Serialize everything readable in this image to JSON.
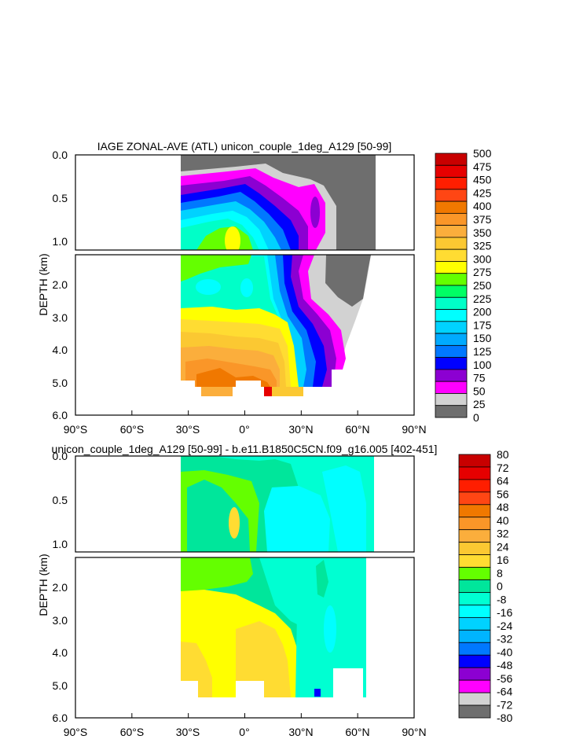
{
  "chart_data": [
    {
      "type": "heatmap",
      "title": "IAGE ZONAL-AVE (ATL) unicon_couple_1deg_A129 [50-99]",
      "ylabel": "DEPTH (km)",
      "xlabel": "",
      "x_ticks": [
        "90°S",
        "60°S",
        "30°S",
        "0°",
        "30°N",
        "60°N",
        "90°N"
      ],
      "y_ticks_upper": [
        "0.0",
        "0.5",
        "1.0"
      ],
      "y_ticks_lower": [
        "2.0",
        "3.0",
        "4.0",
        "5.0",
        "6.0"
      ],
      "xlim": [
        -90,
        90
      ],
      "ylim_upper": [
        0,
        1.1
      ],
      "ylim_lower": [
        1.1,
        6.0
      ],
      "colorbar_labels": [
        "500",
        "475",
        "450",
        "425",
        "400",
        "375",
        "350",
        "325",
        "300",
        "275",
        "250",
        "225",
        "200",
        "175",
        "150",
        "125",
        "100",
        "75",
        "50",
        "25",
        "0"
      ],
      "colorbar_colors": [
        "#c80000",
        "#e60000",
        "#ff1e00",
        "#ff4614",
        "#f07800",
        "#fa9628",
        "#fbae3c",
        "#fbc832",
        "#ffdc32",
        "#ffff00",
        "#64ff00",
        "#00ff64",
        "#00ffc8",
        "#00ffff",
        "#00d2ff",
        "#00aaff",
        "#0078ff",
        "#0000ff",
        "#8c00d2",
        "#ff00ff",
        "#d2d2d2",
        "#6e6e6e"
      ]
    },
    {
      "type": "heatmap",
      "title": "unicon_couple_1deg_A129 [50-99] - b.e11.B1850C5CN.f09_g16.005 [402-451]",
      "ylabel": "DEPTH (km)",
      "xlabel": "",
      "x_ticks": [
        "90°S",
        "60°S",
        "30°S",
        "0°",
        "30°N",
        "60°N",
        "90°N"
      ],
      "y_ticks_upper": [
        "0.0",
        "0.5",
        "1.0"
      ],
      "y_ticks_lower": [
        "2.0",
        "3.0",
        "4.0",
        "5.0",
        "6.0"
      ],
      "xlim": [
        -90,
        90
      ],
      "ylim_upper": [
        0,
        1.1
      ],
      "ylim_lower": [
        1.1,
        6.0
      ],
      "colorbar_labels": [
        "80",
        "72",
        "64",
        "56",
        "48",
        "40",
        "32",
        "24",
        "16",
        "8",
        "0",
        "-8",
        "-16",
        "-24",
        "-32",
        "-40",
        "-48",
        "-56",
        "-64",
        "-72",
        "-80"
      ],
      "colorbar_colors": [
        "#c80000",
        "#e60000",
        "#ff1e00",
        "#ff4614",
        "#f07800",
        "#fa9628",
        "#fbae3c",
        "#fbc832",
        "#ffdc32",
        "#64ff00",
        "#00e69b",
        "#00ffd2",
        "#00ffff",
        "#00d2ff",
        "#00b4ff",
        "#0078ff",
        "#0000ff",
        "#8c00d2",
        "#ff00ff",
        "#d2d2d2",
        "#6e6e6e"
      ]
    }
  ]
}
